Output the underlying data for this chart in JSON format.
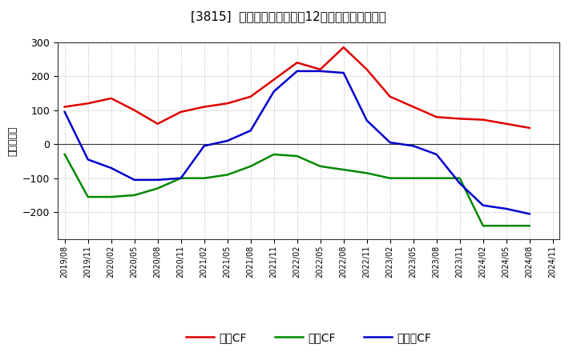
{
  "title": "[3815]  キャッシュフローの12か月移動合計の推移",
  "ylabel": "（百万円）",
  "xlabels": [
    "2019/08",
    "2019/11",
    "2020/02",
    "2020/05",
    "2020/08",
    "2020/11",
    "2021/02",
    "2021/05",
    "2021/08",
    "2021/11",
    "2022/02",
    "2022/05",
    "2022/08",
    "2022/11",
    "2023/02",
    "2023/05",
    "2023/08",
    "2023/11",
    "2024/02",
    "2024/05",
    "2024/08",
    "2024/11"
  ],
  "eigyo_cf": [
    110,
    120,
    135,
    100,
    60,
    95,
    110,
    120,
    140,
    190,
    240,
    220,
    285,
    220,
    140,
    110,
    80,
    75,
    72,
    60,
    48,
    null
  ],
  "toshi_cf": [
    -30,
    -155,
    -155,
    -150,
    -130,
    -100,
    -100,
    -90,
    -65,
    -30,
    -35,
    -65,
    -75,
    -85,
    -100,
    -100,
    -100,
    -100,
    -240,
    -240,
    -240,
    null
  ],
  "free_cf": [
    95,
    -45,
    -70,
    -105,
    -105,
    -100,
    -5,
    10,
    40,
    155,
    215,
    215,
    210,
    70,
    5,
    -5,
    -30,
    -115,
    -180,
    -190,
    -205,
    null
  ],
  "colors": {
    "eigyo": "#dd0000",
    "toshi": "#008800",
    "free": "#0000cc"
  },
  "ylim": [
    -280,
    300
  ],
  "yticks": [
    -200,
    -100,
    0,
    100,
    200,
    300
  ],
  "legend_labels": [
    "営業CF",
    "投資CF",
    "フリーCF"
  ],
  "bg_color": "#ffffff",
  "plot_bg_color": "#ffffff",
  "grid_color": "#aaaaaa"
}
